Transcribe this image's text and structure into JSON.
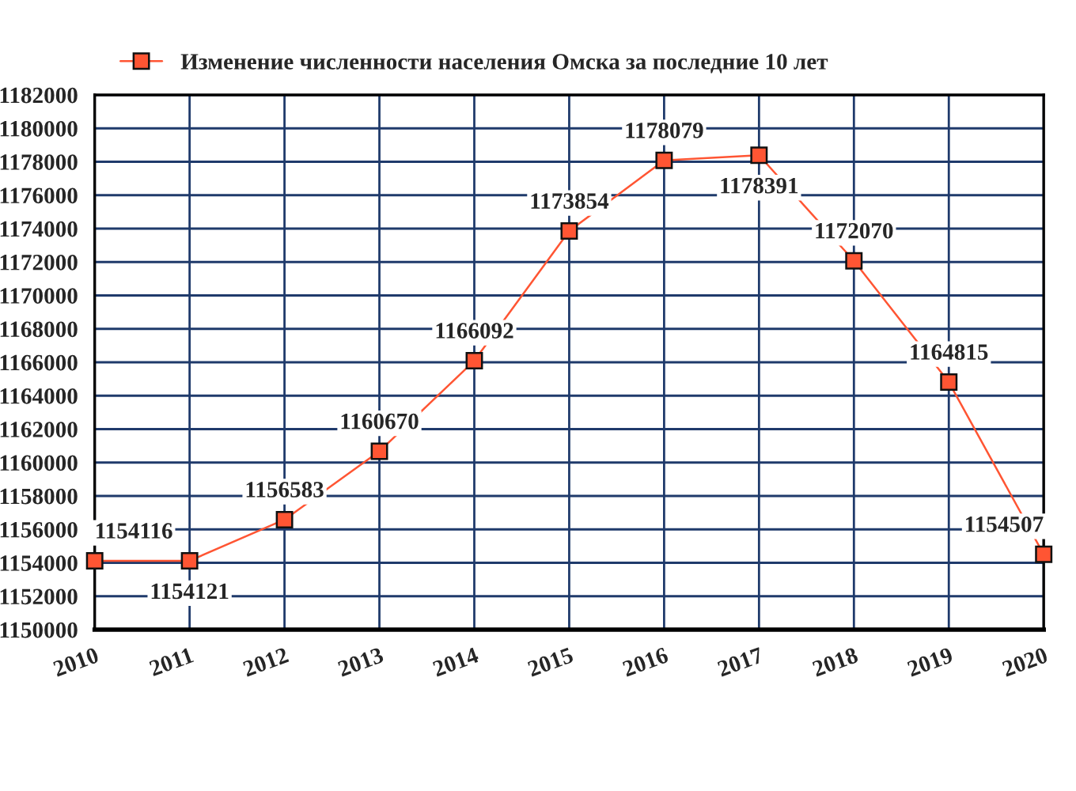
{
  "chart_data": {
    "type": "line",
    "x": [
      2010,
      2011,
      2012,
      2013,
      2014,
      2015,
      2016,
      2017,
      2018,
      2019,
      2020
    ],
    "series": [
      {
        "name": "Изменение численности населения Омска за последние 10 лет",
        "color": "#ff5533",
        "values": [
          1154116,
          1154121,
          1156583,
          1160670,
          1166092,
          1173854,
          1178079,
          1178391,
          1172070,
          1164815,
          1154507
        ]
      }
    ],
    "xlim": [
      2010,
      2020
    ],
    "xticks": [
      2010,
      2011,
      2012,
      2013,
      2014,
      2015,
      2016,
      2017,
      2018,
      2019,
      2020
    ],
    "ylim": [
      1150000,
      1182000
    ],
    "yticks": [
      1150000,
      1152000,
      1154000,
      1156000,
      1158000,
      1160000,
      1162000,
      1164000,
      1166000,
      1168000,
      1170000,
      1172000,
      1174000,
      1176000,
      1178000,
      1180000,
      1182000
    ],
    "grid": true,
    "legend": "top",
    "marker": "square",
    "line_style": "solid",
    "data_labels": true
  }
}
